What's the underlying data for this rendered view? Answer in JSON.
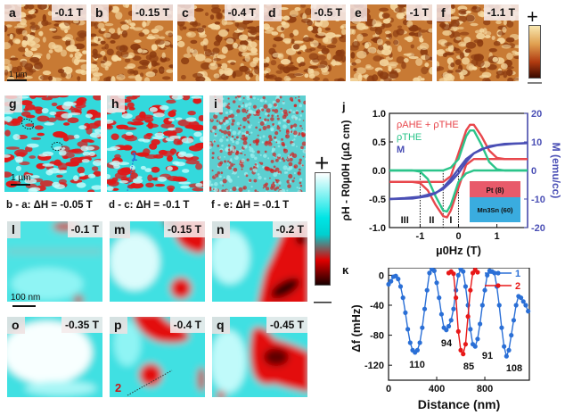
{
  "row1": {
    "panels": [
      {
        "label": "a",
        "field": "-0.1 T"
      },
      {
        "label": "b",
        "field": "-0.15 T"
      },
      {
        "label": "c",
        "field": "-0.4 T"
      },
      {
        "label": "d",
        "field": "-0.5 T"
      },
      {
        "label": "e",
        "field": "-1 T"
      },
      {
        "label": "f",
        "field": "-1.1 T"
      }
    ],
    "scale_bar": "1 µm",
    "colorbar": {
      "plus": "+",
      "minus": "—",
      "top_color": "#f8e7b0",
      "bottom_color": "#3a0a00"
    }
  },
  "row2": {
    "panels": [
      {
        "label": "g",
        "caption": "b - a: ΔH = -0.05 T"
      },
      {
        "label": "h",
        "caption": "d - c: ΔH = -0.1 T",
        "marker": "1"
      },
      {
        "label": "i",
        "caption": "f - e: ΔH = -0.1 T"
      }
    ],
    "scale_bar": "1 µm",
    "colorbar": {
      "plus": "+",
      "minus": "—",
      "top_color": "#ffffff",
      "mid_color": "#00e5e5",
      "low_color": "#e00000",
      "bottom_color": "#1a0000"
    }
  },
  "row3": {
    "panels": [
      {
        "label": "l",
        "field": "-0.1 T"
      },
      {
        "label": "m",
        "field": "-0.15 T"
      },
      {
        "label": "n",
        "field": "-0.2 T"
      }
    ],
    "scale_bar": "100 nm"
  },
  "row4": {
    "panels": [
      {
        "label": "o",
        "field": "-0.35 T"
      },
      {
        "label": "p",
        "field": "-0.4 T",
        "marker": "2"
      },
      {
        "label": "q",
        "field": "-0.45 T"
      }
    ]
  },
  "chart_data": [
    {
      "panel": "j",
      "type": "line",
      "xlabel": "µ0Hz (T)",
      "ylabel": "ρH - R0µ0H (µΩ cm)",
      "y2label": "M (emu/cc)",
      "xlim": [
        -1.8,
        1.8
      ],
      "ylim": [
        -1.0,
        1.0
      ],
      "y2lim": [
        -20,
        20
      ],
      "xticks": [
        "-1",
        "0",
        "1"
      ],
      "yticks": [
        "1.0",
        "0.5",
        "0.0",
        "-0.5",
        "-1.0"
      ],
      "y2ticks": [
        "20",
        "10",
        "0",
        "-10",
        "-20"
      ],
      "legend": [
        {
          "name": "ρAHE + ρTHE",
          "color": "#e8474c"
        },
        {
          "name": "ρTHE",
          "color": "#2bc48a"
        },
        {
          "name": "M",
          "color": "#4a4fb5"
        }
      ],
      "regions": [
        "III",
        "II",
        "I"
      ],
      "dotted_lines_x": [
        -1.0,
        -0.4,
        0.0
      ],
      "inset": {
        "top": "Pt (8)",
        "bottom": "Mn3Sn (60)",
        "top_color": "#e85a6a",
        "bottom_color": "#3aacdf"
      },
      "series": [
        {
          "name": "ρAHE + ρTHE (down sweep)",
          "x": [
            -1.8,
            -1.2,
            -1.0,
            -0.8,
            -0.6,
            -0.4,
            -0.3,
            -0.2,
            0.0,
            0.2,
            0.4,
            0.6,
            0.8,
            1.0,
            1.4,
            1.8
          ],
          "y": [
            -0.2,
            -0.2,
            -0.22,
            -0.35,
            -0.6,
            -0.8,
            -0.82,
            -0.7,
            -0.3,
            0.1,
            0.2,
            0.2,
            0.2,
            0.2,
            0.2,
            0.2
          ]
        },
        {
          "name": "ρAHE + ρTHE (up sweep)",
          "x": [
            -1.8,
            -1.4,
            -1.0,
            -0.6,
            -0.4,
            -0.2,
            0.0,
            0.2,
            0.3,
            0.4,
            0.6,
            0.8,
            1.0,
            1.2,
            1.8
          ],
          "y": [
            -0.2,
            -0.2,
            -0.2,
            -0.2,
            -0.2,
            -0.1,
            0.3,
            0.7,
            0.8,
            0.8,
            0.6,
            0.35,
            0.22,
            0.2,
            0.2
          ]
        },
        {
          "name": "ρTHE (down sweep)",
          "x": [
            -1.8,
            -1.2,
            -1.0,
            -0.8,
            -0.6,
            -0.4,
            -0.3,
            -0.2,
            0.0,
            0.2,
            0.4,
            0.6,
            0.8,
            1.0,
            1.8
          ],
          "y": [
            0,
            0,
            -0.02,
            -0.15,
            -0.45,
            -0.7,
            -0.72,
            -0.6,
            -0.2,
            -0.05,
            0,
            0,
            0,
            0,
            0
          ]
        },
        {
          "name": "ρTHE (up sweep)",
          "x": [
            -1.8,
            -1.0,
            -0.6,
            -0.4,
            -0.2,
            0.0,
            0.2,
            0.3,
            0.4,
            0.6,
            0.8,
            1.0,
            1.2,
            1.8
          ],
          "y": [
            0,
            0,
            0,
            0,
            0.05,
            0.2,
            0.6,
            0.7,
            0.7,
            0.45,
            0.15,
            0.02,
            0,
            0
          ]
        },
        {
          "name": "M (down sweep)",
          "x": [
            -1.8,
            -1.2,
            -0.8,
            -0.6,
            -0.4,
            -0.2,
            0.0,
            0.2,
            0.4,
            0.6,
            1.0,
            1.4,
            1.8
          ],
          "y": [
            -10,
            -9.8,
            -9,
            -8,
            -6,
            -3,
            0.5,
            4,
            6,
            7.5,
            8.8,
            9.3,
            9.6
          ]
        },
        {
          "name": "M (up sweep)",
          "x": [
            -1.8,
            -1.4,
            -1.0,
            -0.6,
            -0.4,
            -0.2,
            0.0,
            0.2,
            0.4,
            0.8,
            1.2,
            1.8
          ],
          "y": [
            -10,
            -9.7,
            -9.2,
            -7.8,
            -6.5,
            -4,
            -1,
            3,
            6,
            8.5,
            9.3,
            9.6
          ]
        }
      ]
    },
    {
      "panel": "k",
      "type": "line",
      "xlabel": "Distance (nm)",
      "ylabel": "Δf (mHz)",
      "xlim": [
        0,
        1170
      ],
      "ylim": [
        -140,
        10
      ],
      "xticks": [
        "0",
        "400",
        "800"
      ],
      "yticks": [
        "0",
        "-40",
        "-80",
        "-120"
      ],
      "legend": [
        {
          "name": "1",
          "color": "#2a6fd6"
        },
        {
          "name": "2",
          "color": "#e81818"
        }
      ],
      "annotations": [
        "110",
        "94",
        "85",
        "91",
        "108"
      ],
      "series": [
        {
          "name": "1",
          "x": [
            0,
            20,
            40,
            60,
            80,
            100,
            120,
            140,
            160,
            180,
            200,
            220,
            240,
            260,
            280,
            300,
            320,
            340,
            360,
            380,
            400,
            420,
            440,
            460,
            480,
            500,
            520,
            540,
            560,
            580,
            600,
            620,
            640,
            660,
            680,
            700,
            720,
            740,
            760,
            780,
            800,
            820,
            840,
            860,
            880,
            900,
            920,
            940,
            960,
            980,
            1000,
            1020,
            1040,
            1060,
            1080,
            1100,
            1120,
            1140,
            1160
          ],
          "y": [
            -12,
            -8,
            -2,
            -1,
            -5,
            -15,
            -30,
            -50,
            -72,
            -90,
            -100,
            -103,
            -100,
            -90,
            -70,
            -45,
            -20,
            3,
            8,
            6,
            -10,
            -30,
            -52,
            -70,
            -73,
            -68,
            -60,
            -45,
            -20,
            0,
            8,
            5,
            -15,
            -40,
            -72,
            -92,
            -95,
            -85,
            -65,
            -40,
            -20,
            0,
            6,
            5,
            3,
            -15,
            -40,
            -70,
            -95,
            -108,
            -100,
            -80,
            -60,
            -40,
            -28,
            -30,
            -35,
            -40,
            -48
          ]
        },
        {
          "name": "2",
          "x": [
            500,
            520,
            540,
            560,
            580,
            600,
            620,
            640,
            660,
            680,
            700,
            720,
            740
          ],
          "y": [
            3,
            5,
            2,
            -30,
            -75,
            -100,
            -105,
            -92,
            -55,
            -20,
            3,
            7,
            4
          ]
        }
      ]
    }
  ]
}
